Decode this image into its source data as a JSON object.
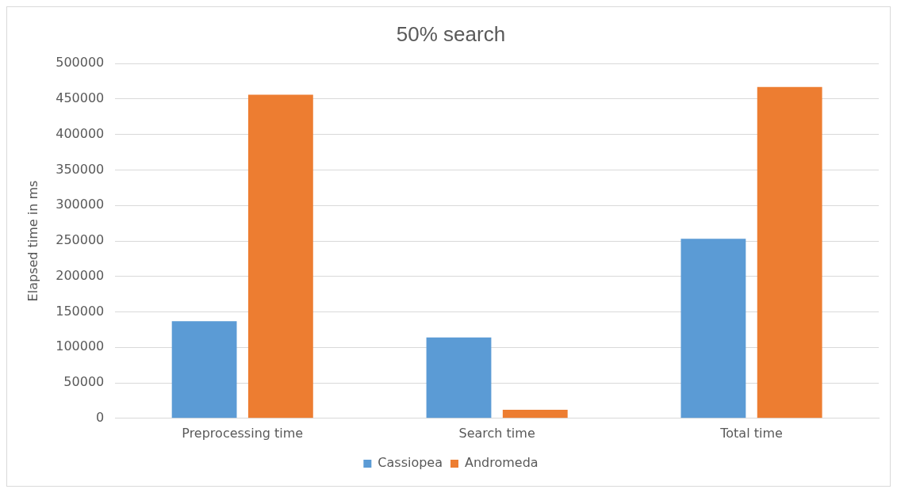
{
  "chart_data": {
    "type": "bar",
    "title": "50% search",
    "ylabel": "Elapsed time in ms",
    "categories": [
      "Preprocessing time",
      "Search time",
      "Total time"
    ],
    "series": [
      {
        "name": "Cassiopea",
        "color": "#5b9bd5",
        "values": [
          137000,
          114000,
          253000
        ]
      },
      {
        "name": "Andromeda",
        "color": "#ed7d31",
        "values": [
          456000,
          12000,
          467000
        ]
      }
    ],
    "ylim": [
      0,
      500000
    ],
    "yticks": [
      0,
      50000,
      100000,
      150000,
      200000,
      250000,
      300000,
      350000,
      400000,
      450000,
      500000
    ],
    "grid": "y",
    "legend": "bottom"
  }
}
